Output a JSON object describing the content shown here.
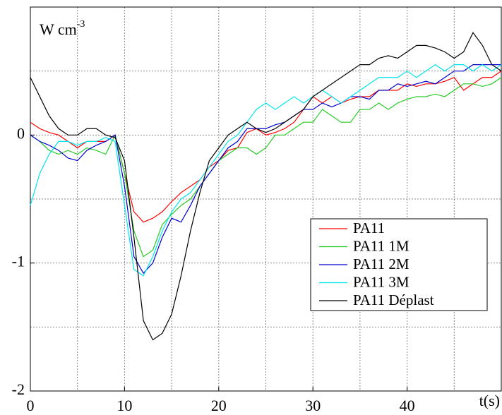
{
  "chart_data": {
    "type": "line",
    "ylabel": "W cm",
    "ylabel_sup": "-3",
    "xlabel": "t(s)",
    "xlim": [
      0,
      50
    ],
    "ylim": [
      -2,
      1
    ],
    "xticks": [
      0,
      10,
      20,
      30,
      40
    ],
    "yticks": [
      -2,
      -1,
      0
    ],
    "xgrid": [
      5,
      10,
      15,
      20,
      25,
      30,
      35,
      40,
      45
    ],
    "ygrid": [
      -1.5,
      -1,
      -0.5,
      0,
      0.5
    ],
    "grid": true,
    "legend": "lower right",
    "x": [
      0,
      1,
      2,
      3,
      4,
      5,
      6,
      7,
      8,
      9,
      10,
      11,
      12,
      13,
      14,
      15,
      16,
      17,
      18,
      19,
      20,
      21,
      22,
      23,
      24,
      25,
      26,
      27,
      28,
      29,
      30,
      31,
      32,
      33,
      34,
      35,
      36,
      37,
      38,
      39,
      40,
      41,
      42,
      43,
      44,
      45,
      46,
      47,
      48,
      49,
      50
    ],
    "series": [
      {
        "name": "PA11",
        "color": "#ff0000",
        "values": [
          0.1,
          0.05,
          0.02,
          0.0,
          -0.05,
          -0.1,
          -0.05,
          -0.05,
          -0.05,
          0.0,
          -0.3,
          -0.6,
          -0.68,
          -0.65,
          -0.6,
          -0.52,
          -0.45,
          -0.4,
          -0.35,
          -0.25,
          -0.2,
          -0.12,
          -0.1,
          0.02,
          0.05,
          0.0,
          0.02,
          0.05,
          0.1,
          0.2,
          0.3,
          0.25,
          0.3,
          0.25,
          0.28,
          0.3,
          0.3,
          0.35,
          0.35,
          0.35,
          0.4,
          0.38,
          0.4,
          0.4,
          0.42,
          0.45,
          0.35,
          0.4,
          0.45,
          0.45,
          0.5
        ]
      },
      {
        "name": "PA11 1M",
        "color": "#22cc22",
        "values": [
          0.0,
          -0.05,
          -0.12,
          -0.15,
          -0.12,
          -0.15,
          -0.1,
          -0.12,
          -0.15,
          0.0,
          -0.3,
          -0.75,
          -0.95,
          -0.9,
          -0.7,
          -0.62,
          -0.55,
          -0.5,
          -0.4,
          -0.3,
          -0.2,
          -0.15,
          -0.1,
          -0.1,
          -0.15,
          -0.1,
          0.0,
          0.0,
          0.05,
          0.1,
          0.1,
          0.2,
          0.15,
          0.1,
          0.1,
          0.2,
          0.2,
          0.25,
          0.2,
          0.25,
          0.28,
          0.3,
          0.3,
          0.32,
          0.3,
          0.35,
          0.4,
          0.4,
          0.38,
          0.4,
          0.45
        ]
      },
      {
        "name": "PA11 2M",
        "color": "#0000cc",
        "values": [
          0.0,
          -0.05,
          -0.08,
          -0.12,
          -0.18,
          -0.2,
          -0.12,
          -0.08,
          -0.05,
          0.0,
          -0.4,
          -0.95,
          -1.08,
          -1.0,
          -0.8,
          -0.65,
          -0.68,
          -0.55,
          -0.4,
          -0.3,
          -0.2,
          -0.1,
          -0.05,
          0.05,
          0.05,
          0.05,
          0.08,
          0.1,
          0.15,
          0.2,
          0.2,
          0.25,
          0.22,
          0.25,
          0.3,
          0.3,
          0.28,
          0.35,
          0.35,
          0.4,
          0.38,
          0.4,
          0.42,
          0.4,
          0.45,
          0.5,
          0.5,
          0.55,
          0.55,
          0.55,
          0.55
        ]
      },
      {
        "name": "PA11 3M",
        "color": "#00e5ee",
        "values": [
          -0.55,
          -0.3,
          -0.15,
          -0.05,
          -0.05,
          -0.08,
          -0.05,
          -0.05,
          -0.02,
          -0.05,
          -0.55,
          -1.05,
          -1.1,
          -0.95,
          -0.75,
          -0.6,
          -0.5,
          -0.45,
          -0.35,
          -0.25,
          -0.15,
          -0.05,
          0.0,
          0.1,
          0.2,
          0.25,
          0.2,
          0.25,
          0.3,
          0.25,
          0.3,
          0.35,
          0.3,
          0.25,
          0.3,
          0.35,
          0.4,
          0.45,
          0.45,
          0.45,
          0.5,
          0.45,
          0.5,
          0.55,
          0.5,
          0.55,
          0.55,
          0.5,
          0.55,
          0.5,
          0.55
        ]
      },
      {
        "name": "PA11 Déplast",
        "color": "#000000",
        "values": [
          0.45,
          0.3,
          0.15,
          0.05,
          0.0,
          0.0,
          0.05,
          0.05,
          0.0,
          -0.02,
          -0.2,
          -0.8,
          -1.45,
          -1.6,
          -1.55,
          -1.4,
          -1.1,
          -0.75,
          -0.45,
          -0.2,
          -0.1,
          0.0,
          0.05,
          0.1,
          0.05,
          0.02,
          0.05,
          0.1,
          0.15,
          0.2,
          0.3,
          0.35,
          0.4,
          0.45,
          0.5,
          0.55,
          0.55,
          0.6,
          0.62,
          0.6,
          0.65,
          0.7,
          0.7,
          0.68,
          0.65,
          0.6,
          0.65,
          0.8,
          0.7,
          0.55,
          0.5
        ]
      }
    ]
  }
}
